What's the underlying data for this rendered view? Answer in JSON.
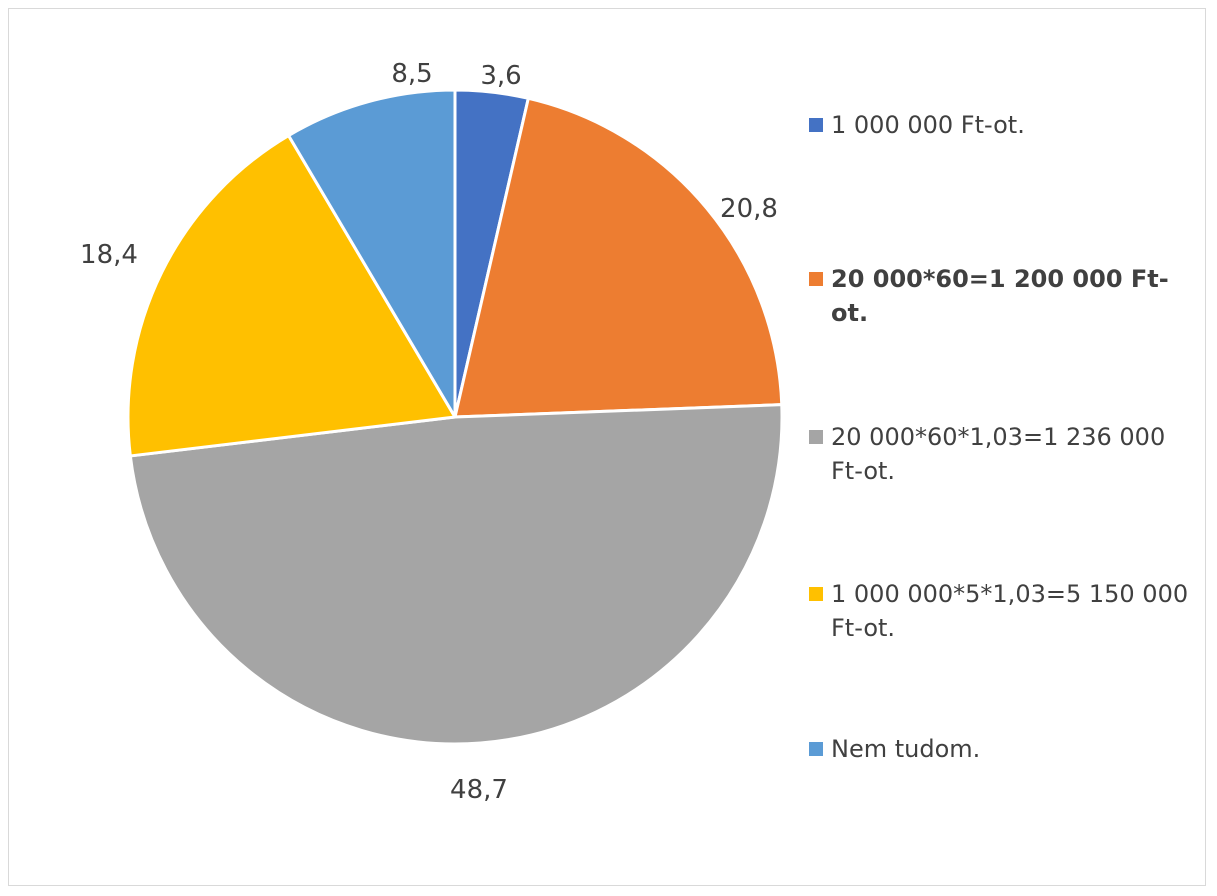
{
  "chart_data": {
    "type": "pie",
    "title": "",
    "slices": [
      {
        "label": "1 000 000 Ft-ot.",
        "value": 3.6,
        "value_label": "3,6",
        "color": "#4472c4",
        "bold": false
      },
      {
        "label": "20 000*60=1 200 000 Ft-ot.",
        "value": 20.8,
        "value_label": "20,8",
        "color": "#ed7d31",
        "bold": true
      },
      {
        "label": "20 000*60*1,03=1 236 000 Ft-ot.",
        "value": 48.7,
        "value_label": "48,7",
        "color": "#a5a5a5",
        "bold": false
      },
      {
        "label": "1 000 000*5*1,03=5 150 000 Ft-ot.",
        "value": 18.4,
        "value_label": "18,4",
        "color": "#ffc000",
        "bold": false
      },
      {
        "label": "Nem tudom.",
        "value": 8.5,
        "value_label": "8,5",
        "color": "#5b9bd5",
        "bold": false
      }
    ],
    "start_angle_deg": 0,
    "direction": "clockwise",
    "legend_position": "right",
    "label_color": "#404040",
    "border_color": "#d9d9d9"
  }
}
